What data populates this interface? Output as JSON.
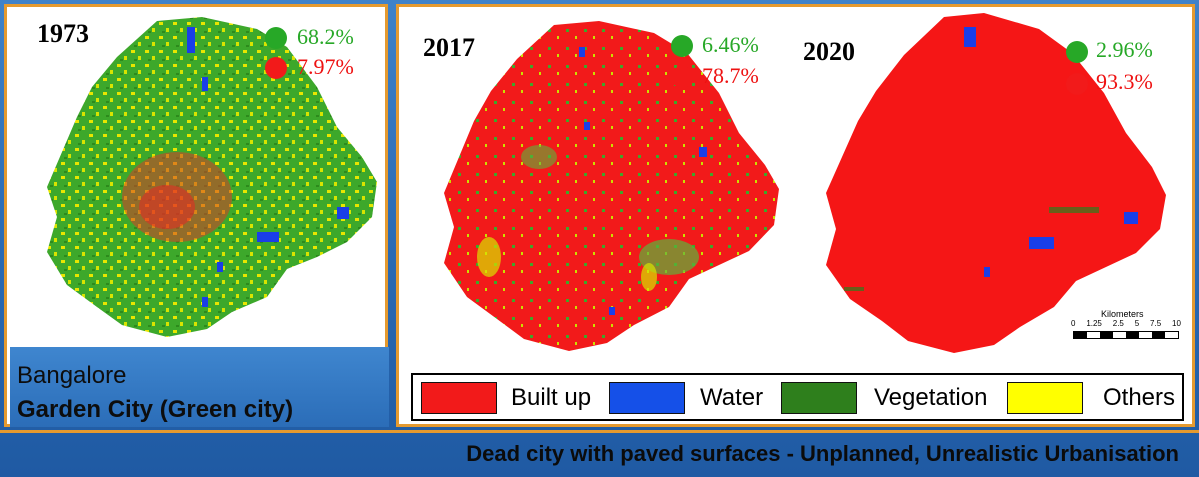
{
  "maps": [
    {
      "year": "1973",
      "vegetation": "68.2%",
      "built_up": "7.97%"
    },
    {
      "year": "2017",
      "vegetation": "6.46%",
      "built_up": "78.7%"
    },
    {
      "year": "2020",
      "vegetation": "2.96%",
      "built_up": "93.3%"
    }
  ],
  "city": {
    "name": "Bangalore",
    "nickname": "Garden City (Green city)"
  },
  "legend": [
    {
      "label": "Built up",
      "color": "#f21a1a"
    },
    {
      "label": "Water",
      "color": "#1550e8"
    },
    {
      "label": "Vegetation",
      "color": "#2e7f1c"
    },
    {
      "label": "Others",
      "color": "#ffff00"
    }
  ],
  "scale_bar": {
    "title": "Kilometers",
    "ticks": [
      "0",
      "1.25",
      "2.5",
      "5",
      "7.5",
      "10"
    ]
  },
  "footer": "Dead city with paved surfaces - Unplanned, Unrealistic Urbanisation",
  "colors": {
    "frame": "#e59a2f",
    "background": "#2d6db6",
    "vegetation_stat": "#27a827",
    "built_up_stat": "#e11111"
  }
}
